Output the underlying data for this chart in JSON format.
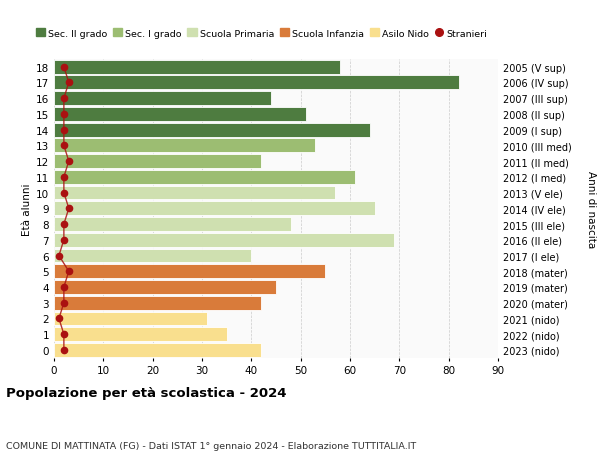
{
  "ages": [
    0,
    1,
    2,
    3,
    4,
    5,
    6,
    7,
    8,
    9,
    10,
    11,
    12,
    13,
    14,
    15,
    16,
    17,
    18
  ],
  "values": [
    42,
    35,
    31,
    42,
    45,
    55,
    40,
    69,
    48,
    65,
    57,
    61,
    42,
    53,
    64,
    51,
    44,
    82,
    58
  ],
  "stranieri": [
    2,
    2,
    1,
    2,
    2,
    3,
    1,
    2,
    2,
    3,
    2,
    2,
    3,
    2,
    2,
    2,
    2,
    3,
    2
  ],
  "right_labels": [
    "2023 (nido)",
    "2022 (nido)",
    "2021 (nido)",
    "2020 (mater)",
    "2019 (mater)",
    "2018 (mater)",
    "2017 (I ele)",
    "2016 (II ele)",
    "2015 (III ele)",
    "2014 (IV ele)",
    "2013 (V ele)",
    "2012 (I med)",
    "2011 (II med)",
    "2010 (III med)",
    "2009 (I sup)",
    "2008 (II sup)",
    "2007 (III sup)",
    "2006 (IV sup)",
    "2005 (V sup)"
  ],
  "bar_colors": [
    "#f9df8e",
    "#f9df8e",
    "#f9df8e",
    "#d97b3a",
    "#d97b3a",
    "#d97b3a",
    "#cfe0b0",
    "#cfe0b0",
    "#cfe0b0",
    "#cfe0b0",
    "#cfe0b0",
    "#9cbd72",
    "#9cbd72",
    "#9cbd72",
    "#4e7c40",
    "#4e7c40",
    "#4e7c40",
    "#4e7c40",
    "#4e7c40"
  ],
  "legend_labels": [
    "Sec. II grado",
    "Sec. I grado",
    "Scuola Primaria",
    "Scuola Infanzia",
    "Asilo Nido",
    "Stranieri"
  ],
  "legend_colors": [
    "#4e7c40",
    "#9cbd72",
    "#cfe0b0",
    "#d97b3a",
    "#f9df8e",
    "#aa1111"
  ],
  "title": "Popolazione per età scolastica - 2024",
  "subtitle": "COMUNE DI MATTINATA (FG) - Dati ISTAT 1° gennaio 2024 - Elaborazione TUTTITALIA.IT",
  "ylabel_left": "Età alunni",
  "ylabel_right": "Anni di nascita",
  "xlim": [
    0,
    90
  ],
  "xticks": [
    0,
    10,
    20,
    30,
    40,
    50,
    60,
    70,
    80,
    90
  ],
  "stranieri_color": "#aa1111",
  "background_color": "#ffffff",
  "plot_background": "#fafafa"
}
